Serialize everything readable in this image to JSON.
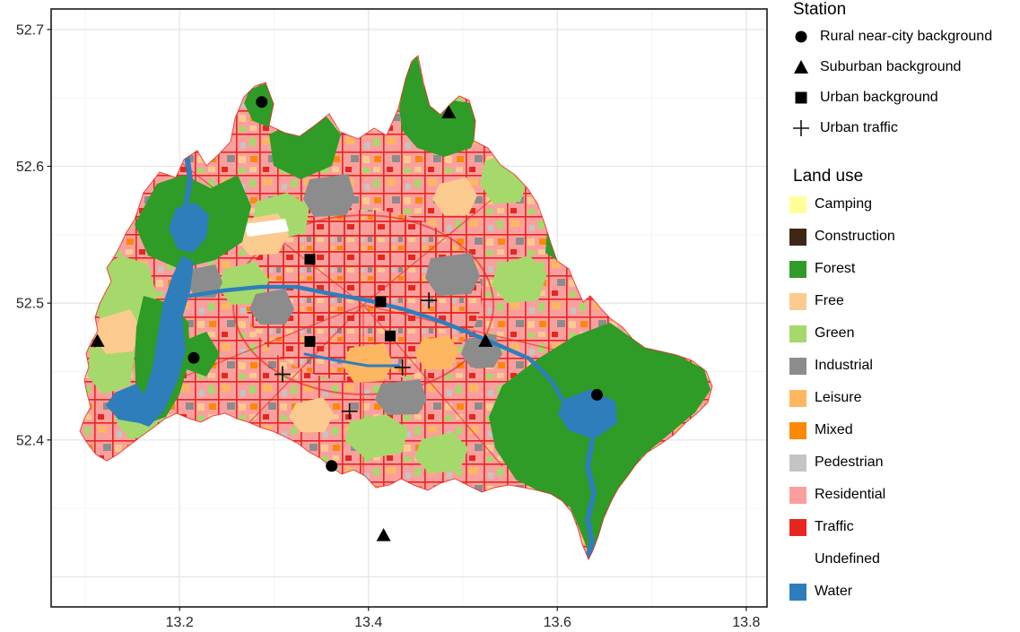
{
  "chart_data": {
    "type": "map",
    "region": "Berlin land use with measurement stations",
    "x_axis": {
      "domain": [
        13.064,
        13.822
      ],
      "ticks": [
        {
          "value": 13.2,
          "label": "13.2"
        },
        {
          "value": 13.4,
          "label": "13.4"
        },
        {
          "value": 13.6,
          "label": "13.6"
        },
        {
          "value": 13.8,
          "label": "13.8"
        }
      ],
      "major_gridlines": [
        13.2,
        13.4,
        13.6,
        13.8
      ],
      "minor_gridlines": [
        13.1,
        13.3,
        13.5,
        13.7
      ]
    },
    "y_axis": {
      "domain": [
        52.278,
        52.715
      ],
      "ticks": [
        {
          "value": 52.7,
          "label": "52.7"
        },
        {
          "value": 52.6,
          "label": "52.6"
        },
        {
          "value": 52.5,
          "label": "52.5"
        },
        {
          "value": 52.4,
          "label": "52.4"
        }
      ],
      "major_gridlines": [
        52.3,
        52.4,
        52.5,
        52.6,
        52.7
      ],
      "minor_gridlines": [
        52.35,
        52.45,
        52.55,
        52.65
      ]
    },
    "stations": [
      {
        "category": "Rural near-city background",
        "symbol": "circle",
        "lon": 13.287,
        "lat": 52.647
      },
      {
        "category": "Rural near-city background",
        "symbol": "circle",
        "lon": 13.215,
        "lat": 52.46
      },
      {
        "category": "Rural near-city background",
        "symbol": "circle",
        "lon": 13.642,
        "lat": 52.433
      },
      {
        "category": "Rural near-city background",
        "symbol": "circle",
        "lon": 13.361,
        "lat": 52.381
      },
      {
        "category": "Suburban background",
        "symbol": "triangle",
        "lon": 13.485,
        "lat": 52.639
      },
      {
        "category": "Suburban background",
        "symbol": "triangle",
        "lon": 13.113,
        "lat": 52.472
      },
      {
        "category": "Suburban background",
        "symbol": "triangle",
        "lon": 13.524,
        "lat": 52.472
      },
      {
        "category": "Suburban background",
        "symbol": "triangle",
        "lon": 13.416,
        "lat": 52.33
      },
      {
        "category": "Urban background",
        "symbol": "square",
        "lon": 13.338,
        "lat": 52.532
      },
      {
        "category": "Urban background",
        "symbol": "square",
        "lon": 13.413,
        "lat": 52.501
      },
      {
        "category": "Urban background",
        "symbol": "square",
        "lon": 13.338,
        "lat": 52.472
      },
      {
        "category": "Urban background",
        "symbol": "square",
        "lon": 13.423,
        "lat": 52.476
      },
      {
        "category": "Urban traffic",
        "symbol": "plus",
        "lon": 13.464,
        "lat": 52.502
      },
      {
        "category": "Urban traffic",
        "symbol": "plus",
        "lon": 13.309,
        "lat": 52.448
      },
      {
        "category": "Urban traffic",
        "symbol": "plus",
        "lon": 13.436,
        "lat": 52.453
      },
      {
        "category": "Urban traffic",
        "symbol": "plus",
        "lon": 13.38,
        "lat": 52.421
      }
    ]
  },
  "legend": {
    "station": {
      "title": "Station",
      "items": [
        {
          "symbol": "circle",
          "label": "Rural near-city background"
        },
        {
          "symbol": "triangle",
          "label": "Suburban background"
        },
        {
          "symbol": "square",
          "label": "Urban background"
        },
        {
          "symbol": "plus",
          "label": "Urban traffic"
        }
      ]
    },
    "land_use": {
      "title": "Land use",
      "items": [
        {
          "key": "camping",
          "label": "Camping",
          "color": "#FFFF99"
        },
        {
          "key": "construction",
          "label": "Construction",
          "color": "#402614"
        },
        {
          "key": "forest",
          "label": "Forest",
          "color": "#2E9C27"
        },
        {
          "key": "free",
          "label": "Free",
          "color": "#FBCA8E"
        },
        {
          "key": "green",
          "label": "Green",
          "color": "#A5D96B"
        },
        {
          "key": "industrial",
          "label": "Industrial",
          "color": "#8C8C8C"
        },
        {
          "key": "leisure",
          "label": "Leisure",
          "color": "#FDB761"
        },
        {
          "key": "mixed",
          "label": "Mixed",
          "color": "#FB8905"
        },
        {
          "key": "pedestrian",
          "label": "Pedestrian",
          "color": "#C4C4C4"
        },
        {
          "key": "residential",
          "label": "Residential",
          "color": "#F9A09F"
        },
        {
          "key": "traffic",
          "label": "Traffic",
          "color": "#E6261F"
        },
        {
          "key": "undefined",
          "label": "Undefined",
          "color": "#FFFFFF"
        },
        {
          "key": "water",
          "label": "Water",
          "color": "#2E7EBC"
        }
      ]
    }
  }
}
